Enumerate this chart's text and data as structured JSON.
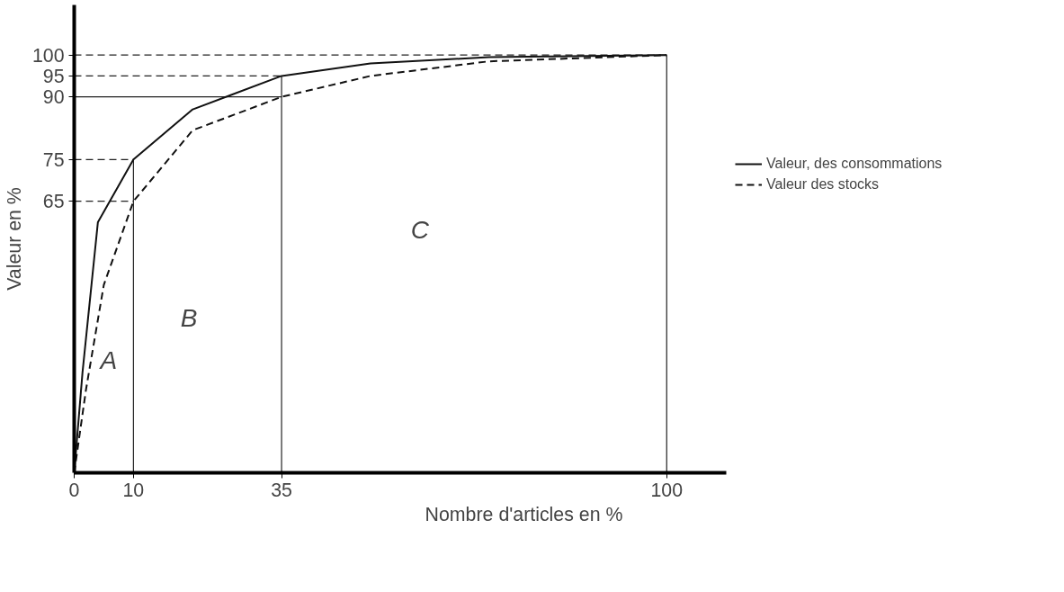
{
  "chart_data": {
    "type": "line",
    "xlabel": "Nombre d'articles en %",
    "ylabel": "Valeur en %",
    "x": [
      0,
      1.4,
      4,
      10,
      20,
      35,
      50,
      70,
      100
    ],
    "series": [
      {
        "name": "Valeur, des consommations",
        "color": "#111111",
        "line_style": "solid",
        "values": [
          0,
          24,
          60,
          75,
          87,
          95,
          98,
          99.5,
          100
        ]
      },
      {
        "name": "Valeur des stocks",
        "color": "#111111",
        "line_style": "dashed",
        "x": [
          0,
          2,
          5,
          10,
          20,
          35,
          50,
          70,
          100
        ],
        "values": [
          0,
          20,
          45,
          65,
          82,
          90,
          95,
          98.5,
          100
        ]
      }
    ],
    "xlim": [
      0,
      110
    ],
    "ylim": [
      0,
      112
    ],
    "xticks": [
      0,
      10,
      35,
      100
    ],
    "yticks": [
      65,
      75,
      90,
      95,
      100
    ],
    "ref_lines": [
      {
        "axis": "x",
        "value": 10,
        "line_style": "solid"
      },
      {
        "axis": "x",
        "value": 35,
        "line_style": "solid"
      },
      {
        "axis": "x",
        "value": 100,
        "line_style": "solid"
      },
      {
        "axis": "y",
        "value": 100,
        "line_style": "dashed"
      },
      {
        "axis": "y",
        "value": 95,
        "line_style": "dashed"
      },
      {
        "axis": "y",
        "value": 90,
        "line_style": "solid"
      },
      {
        "axis": "y",
        "value": 75,
        "line_style": "dashed"
      },
      {
        "axis": "y",
        "value": 65,
        "line_style": "dashed"
      }
    ],
    "annotations": [
      "A",
      "B",
      "C"
    ],
    "grid": false,
    "legend": "right",
    "marker": "none"
  }
}
